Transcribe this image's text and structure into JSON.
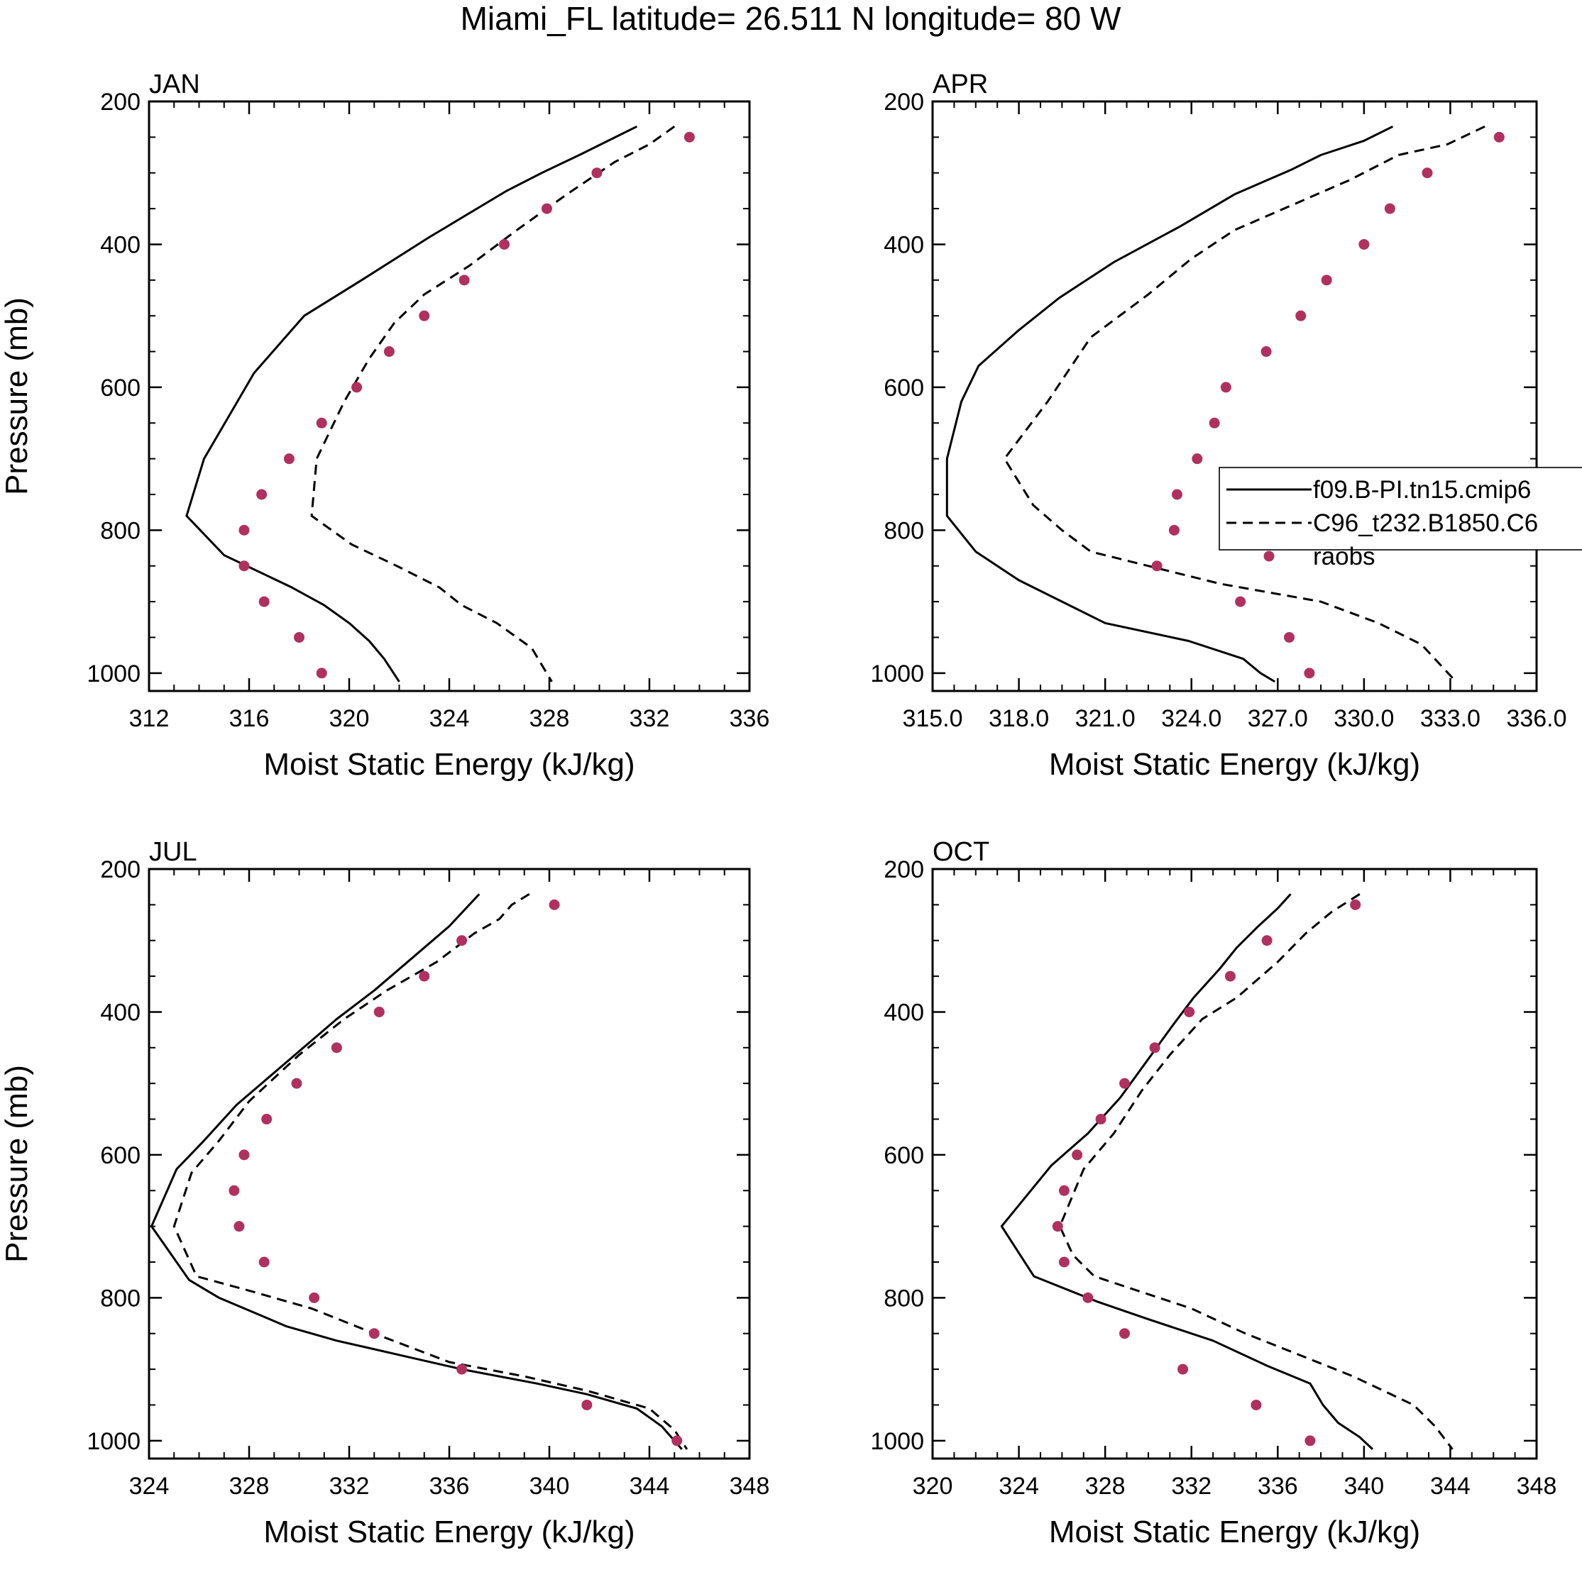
{
  "title": "Miami_FL  latitude= 26.511 N longitude= 80 W",
  "colors": {
    "raobs": "#b03060",
    "lines": "#000000"
  },
  "legend": {
    "entries": [
      {
        "label": "f09.B-PI.tn15.cmip6",
        "style": "solid"
      },
      {
        "label": "C96_t232.B1850.C6",
        "style": "dashed"
      },
      {
        "label": "raobs",
        "style": "dot"
      }
    ]
  },
  "chart_data": [
    {
      "type": "line",
      "panel": "JAN",
      "xlabel": "Moist Static Energy (kJ/kg)",
      "ylabel": "Pressure (mb)",
      "xlim": [
        312,
        336
      ],
      "ylim": [
        200,
        1025
      ],
      "xticks": [
        "312",
        "316",
        "320",
        "324",
        "328",
        "332",
        "336"
      ],
      "yticks": [
        "200",
        "400",
        "600",
        "800",
        "1000"
      ],
      "series": [
        {
          "name": "f09.B-PI.tn15.cmip6",
          "style": "solid",
          "points": [
            [
              331.5,
              235
            ],
            [
              329.2,
              275
            ],
            [
              327.7,
              300
            ],
            [
              326.3,
              325
            ],
            [
              323.2,
              390
            ],
            [
              320.5,
              450
            ],
            [
              318.2,
              500
            ],
            [
              316.2,
              580
            ],
            [
              314.2,
              700
            ],
            [
              313.5,
              780
            ],
            [
              315.0,
              835
            ],
            [
              317.7,
              880
            ],
            [
              319.0,
              905
            ],
            [
              320.0,
              930
            ],
            [
              320.8,
              955
            ],
            [
              321.4,
              980
            ],
            [
              322.0,
              1012
            ]
          ]
        },
        {
          "name": "C96_t232.B1850.C6",
          "style": "dashed",
          "points": [
            [
              333.0,
              235
            ],
            [
              332.0,
              260
            ],
            [
              330.6,
              285
            ],
            [
              328.7,
              330
            ],
            [
              326.7,
              380
            ],
            [
              324.8,
              430
            ],
            [
              323.0,
              470
            ],
            [
              321.8,
              510
            ],
            [
              320.8,
              560
            ],
            [
              319.8,
              620
            ],
            [
              318.7,
              700
            ],
            [
              318.5,
              780
            ],
            [
              320.1,
              820
            ],
            [
              321.9,
              850
            ],
            [
              323.6,
              880
            ],
            [
              324.5,
              905
            ],
            [
              325.9,
              930
            ],
            [
              327.3,
              965
            ],
            [
              328.1,
              1012
            ]
          ]
        },
        {
          "name": "raobs",
          "style": "dot",
          "points": [
            [
              333.6,
              250
            ],
            [
              329.9,
              300
            ],
            [
              327.9,
              350
            ],
            [
              326.2,
              400
            ],
            [
              324.6,
              450
            ],
            [
              323.0,
              500
            ],
            [
              321.6,
              550
            ],
            [
              320.3,
              600
            ],
            [
              318.9,
              650
            ],
            [
              317.6,
              700
            ],
            [
              316.5,
              750
            ],
            [
              315.8,
              800
            ],
            [
              315.8,
              850
            ],
            [
              316.6,
              900
            ],
            [
              318.0,
              950
            ],
            [
              318.9,
              1000
            ]
          ]
        }
      ]
    },
    {
      "type": "line",
      "panel": "APR",
      "xlabel": "Moist Static Energy (kJ/kg)",
      "ylabel": "",
      "xlim": [
        315,
        336
      ],
      "ylim": [
        200,
        1025
      ],
      "xticks": [
        "315.0",
        "318.0",
        "321.0",
        "324.0",
        "327.0",
        "330.0",
        "333.0",
        "336.0"
      ],
      "yticks": [
        "200",
        "400",
        "600",
        "800",
        "1000"
      ],
      "series": [
        {
          "name": "f09.B-PI.tn15.cmip6",
          "style": "solid",
          "points": [
            [
              331.0,
              235
            ],
            [
              330.0,
              255
            ],
            [
              328.5,
              275
            ],
            [
              327.5,
              295
            ],
            [
              325.5,
              330
            ],
            [
              323.6,
              375
            ],
            [
              321.3,
              425
            ],
            [
              319.4,
              475
            ],
            [
              318.0,
              520
            ],
            [
              316.6,
              570
            ],
            [
              316.0,
              620
            ],
            [
              315.5,
              700
            ],
            [
              315.5,
              780
            ],
            [
              316.5,
              830
            ],
            [
              318.0,
              870
            ],
            [
              321.0,
              930
            ],
            [
              323.9,
              955
            ],
            [
              325.8,
              980
            ],
            [
              326.4,
              1000
            ],
            [
              326.9,
              1012
            ]
          ]
        },
        {
          "name": "C96_t232.B1850.C6",
          "style": "dashed",
          "points": [
            [
              334.2,
              235
            ],
            [
              332.9,
              260
            ],
            [
              331.2,
              275
            ],
            [
              329.5,
              310
            ],
            [
              327.5,
              345
            ],
            [
              325.5,
              380
            ],
            [
              324.0,
              420
            ],
            [
              322.5,
              470
            ],
            [
              320.5,
              530
            ],
            [
              319.0,
              620
            ],
            [
              317.5,
              700
            ],
            [
              318.5,
              765
            ],
            [
              319.5,
              800
            ],
            [
              320.5,
              830
            ],
            [
              323.0,
              855
            ],
            [
              325.0,
              875
            ],
            [
              328.5,
              900
            ],
            [
              330.5,
              930
            ],
            [
              332.0,
              960
            ],
            [
              333.2,
              1012
            ]
          ]
        },
        {
          "name": "raobs",
          "style": "dot",
          "points": [
            [
              334.7,
              250
            ],
            [
              332.2,
              300
            ],
            [
              330.9,
              350
            ],
            [
              330.0,
              400
            ],
            [
              328.7,
              450
            ],
            [
              327.8,
              500
            ],
            [
              326.6,
              550
            ],
            [
              325.2,
              600
            ],
            [
              324.8,
              650
            ],
            [
              324.2,
              700
            ],
            [
              323.5,
              750
            ],
            [
              323.4,
              800
            ],
            [
              322.8,
              850
            ],
            [
              325.7,
              900
            ],
            [
              327.4,
              950
            ],
            [
              328.1,
              1000
            ]
          ]
        }
      ]
    },
    {
      "type": "line",
      "panel": "JUL",
      "xlabel": "Moist Static Energy (kJ/kg)",
      "ylabel": "Pressure (mb)",
      "xlim": [
        324,
        348
      ],
      "ylim": [
        200,
        1025
      ],
      "xticks": [
        "324",
        "328",
        "332",
        "336",
        "340",
        "344",
        "348"
      ],
      "yticks": [
        "200",
        "400",
        "600",
        "800",
        "1000"
      ],
      "series": [
        {
          "name": "f09.B-PI.tn15.cmip6",
          "style": "solid",
          "points": [
            [
              337.2,
              235
            ],
            [
              336.0,
              280
            ],
            [
              335.0,
              310
            ],
            [
              333.0,
              370
            ],
            [
              331.5,
              410
            ],
            [
              329.5,
              470
            ],
            [
              327.5,
              530
            ],
            [
              326.2,
              580
            ],
            [
              325.1,
              620
            ],
            [
              324.1,
              700
            ],
            [
              325.6,
              775
            ],
            [
              326.8,
              800
            ],
            [
              329.5,
              840
            ],
            [
              331.5,
              860
            ],
            [
              334.0,
              880
            ],
            [
              336.5,
              900
            ],
            [
              339.5,
              920
            ],
            [
              341.5,
              935
            ],
            [
              343.5,
              955
            ],
            [
              344.5,
              980
            ],
            [
              345.3,
              1012
            ]
          ]
        },
        {
          "name": "C96_t232.B1850.C6",
          "style": "dashed",
          "points": [
            [
              339.2,
              235
            ],
            [
              338.5,
              250
            ],
            [
              338.0,
              270
            ],
            [
              337.0,
              290
            ],
            [
              335.5,
              330
            ],
            [
              333.5,
              370
            ],
            [
              331.8,
              410
            ],
            [
              330.0,
              460
            ],
            [
              328.0,
              525
            ],
            [
              326.8,
              580
            ],
            [
              325.7,
              625
            ],
            [
              325.0,
              700
            ],
            [
              325.9,
              770
            ],
            [
              328.0,
              790
            ],
            [
              330.5,
              815
            ],
            [
              333.0,
              850
            ],
            [
              336.0,
              890
            ],
            [
              339.0,
              910
            ],
            [
              341.5,
              930
            ],
            [
              344.0,
              955
            ],
            [
              345.0,
              985
            ],
            [
              345.5,
              1012
            ]
          ]
        },
        {
          "name": "raobs",
          "style": "dot",
          "points": [
            [
              340.2,
              250
            ],
            [
              336.5,
              300
            ],
            [
              335.0,
              350
            ],
            [
              333.2,
              400
            ],
            [
              331.5,
              450
            ],
            [
              329.9,
              500
            ],
            [
              328.7,
              550
            ],
            [
              327.8,
              600
            ],
            [
              327.4,
              650
            ],
            [
              327.6,
              700
            ],
            [
              328.6,
              750
            ],
            [
              330.6,
              800
            ],
            [
              333.0,
              850
            ],
            [
              336.5,
              900
            ],
            [
              341.5,
              950
            ],
            [
              345.1,
              1000
            ]
          ]
        }
      ]
    },
    {
      "type": "line",
      "panel": "OCT",
      "xlabel": "Moist Static Energy (kJ/kg)",
      "ylabel": "",
      "xlim": [
        320,
        348
      ],
      "ylim": [
        200,
        1025
      ],
      "xticks": [
        "320",
        "324",
        "328",
        "332",
        "336",
        "340",
        "344",
        "348"
      ],
      "yticks": [
        "200",
        "400",
        "600",
        "800",
        "1000"
      ],
      "series": [
        {
          "name": "f09.B-PI.tn15.cmip6",
          "style": "solid",
          "points": [
            [
              336.6,
              235
            ],
            [
              336.0,
              255
            ],
            [
              335.1,
              280
            ],
            [
              334.1,
              310
            ],
            [
              333.3,
              340
            ],
            [
              332.1,
              380
            ],
            [
              331.1,
              420
            ],
            [
              329.9,
              470
            ],
            [
              328.7,
              520
            ],
            [
              327.2,
              570
            ],
            [
              325.5,
              615
            ],
            [
              323.2,
              700
            ],
            [
              324.7,
              770
            ],
            [
              327.6,
              805
            ],
            [
              330.0,
              830
            ],
            [
              333.0,
              860
            ],
            [
              335.5,
              895
            ],
            [
              337.5,
              920
            ],
            [
              338.1,
              950
            ],
            [
              338.8,
              975
            ],
            [
              339.8,
              995
            ],
            [
              340.4,
              1012
            ]
          ]
        },
        {
          "name": "C96_t232.B1850.C6",
          "style": "dashed",
          "points": [
            [
              339.8,
              235
            ],
            [
              338.5,
              260
            ],
            [
              337.3,
              290
            ],
            [
              336.0,
              330
            ],
            [
              334.1,
              380
            ],
            [
              332.5,
              410
            ],
            [
              331.0,
              460
            ],
            [
              329.7,
              510
            ],
            [
              328.4,
              570
            ],
            [
              327.0,
              620
            ],
            [
              325.9,
              700
            ],
            [
              326.5,
              740
            ],
            [
              327.5,
              770
            ],
            [
              329.5,
              790
            ],
            [
              332.0,
              815
            ],
            [
              334.5,
              850
            ],
            [
              337.0,
              880
            ],
            [
              339.5,
              910
            ],
            [
              342.3,
              950
            ],
            [
              343.3,
              980
            ],
            [
              344.1,
              1012
            ]
          ]
        },
        {
          "name": "raobs",
          "style": "dot",
          "points": [
            [
              339.6,
              250
            ],
            [
              335.5,
              300
            ],
            [
              333.8,
              350
            ],
            [
              331.9,
              400
            ],
            [
              330.3,
              450
            ],
            [
              328.9,
              500
            ],
            [
              327.8,
              550
            ],
            [
              326.7,
              600
            ],
            [
              326.1,
              650
            ],
            [
              325.8,
              700
            ],
            [
              326.1,
              750
            ],
            [
              327.2,
              800
            ],
            [
              328.9,
              850
            ],
            [
              331.6,
              900
            ],
            [
              335.0,
              950
            ],
            [
              337.5,
              1000
            ]
          ]
        }
      ]
    }
  ]
}
